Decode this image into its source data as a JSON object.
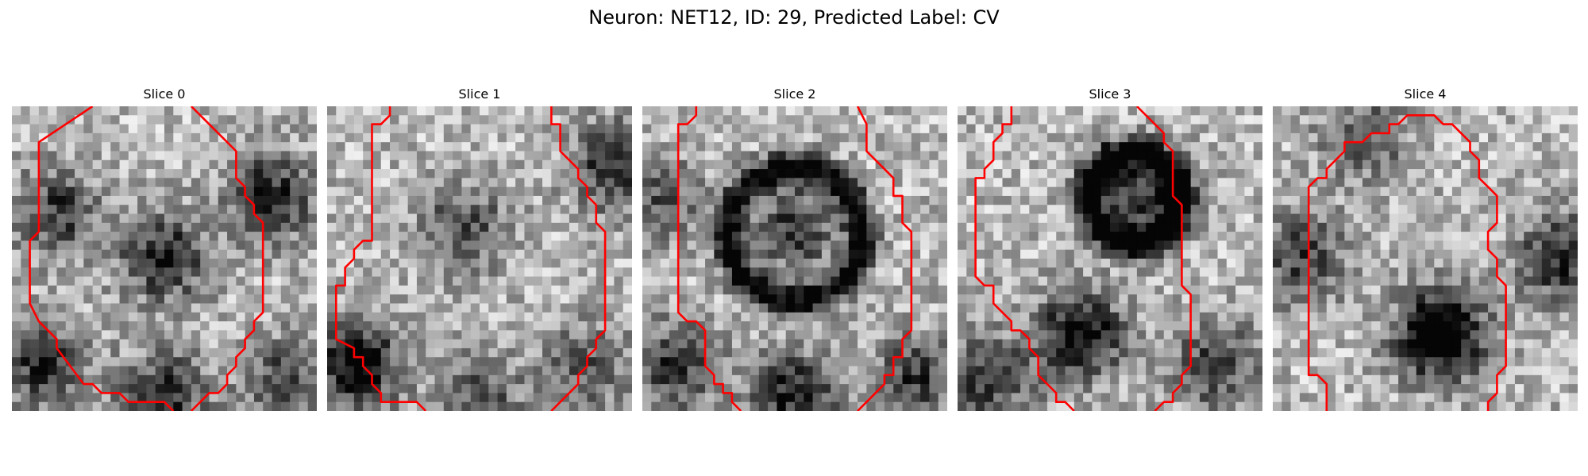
{
  "figure": {
    "title": "Neuron: NET12, ID: 29, Predicted Label: CV"
  },
  "panels": [
    {
      "title": "Slice 0",
      "contour": [
        [
          9,
          0
        ],
        [
          3,
          4
        ],
        [
          3,
          14
        ],
        [
          2,
          15
        ],
        [
          2,
          22
        ],
        [
          3,
          24
        ],
        [
          5,
          26
        ],
        [
          5,
          27
        ],
        [
          8,
          31
        ],
        [
          9,
          31
        ],
        [
          10,
          32
        ],
        [
          12,
          32
        ],
        [
          13,
          33
        ],
        [
          17,
          33
        ],
        [
          18,
          34
        ]
      ],
      "contour2": [
        [
          20,
          0
        ],
        [
          24,
          4
        ],
        [
          25,
          5
        ],
        [
          25,
          8
        ],
        [
          26,
          9
        ],
        [
          26,
          10
        ],
        [
          27,
          11
        ],
        [
          27,
          12
        ],
        [
          28,
          13
        ],
        [
          28,
          23
        ],
        [
          27,
          24
        ],
        [
          27,
          25
        ],
        [
          26,
          26
        ],
        [
          26,
          27
        ],
        [
          25,
          28
        ],
        [
          25,
          29
        ],
        [
          24,
          30
        ],
        [
          24,
          31
        ],
        [
          23,
          32
        ],
        [
          22,
          32
        ],
        [
          21,
          33
        ],
        [
          20,
          34
        ]
      ],
      "dark": [
        [
          0.5,
          0.5,
          0.6
        ],
        [
          0.15,
          0.35,
          0.5
        ],
        [
          0.85,
          0.3,
          0.6
        ],
        [
          0.5,
          0.95,
          0.55
        ],
        [
          0.9,
          0.9,
          0.45
        ],
        [
          0.1,
          0.85,
          0.55
        ]
      ]
    },
    {
      "title": "Slice 1",
      "contour": [
        [
          7,
          0
        ],
        [
          7,
          1
        ],
        [
          6,
          2
        ],
        [
          5,
          2
        ],
        [
          5,
          15
        ],
        [
          4,
          15
        ],
        [
          3,
          16
        ],
        [
          3,
          17
        ],
        [
          2,
          18
        ],
        [
          2,
          20
        ],
        [
          1,
          20
        ],
        [
          1,
          26
        ],
        [
          3,
          27
        ],
        [
          3,
          28
        ],
        [
          4,
          28
        ],
        [
          4,
          29
        ],
        [
          5,
          30
        ],
        [
          5,
          31
        ],
        [
          6,
          32
        ],
        [
          6,
          33
        ],
        [
          10,
          33
        ],
        [
          11,
          34
        ]
      ],
      "contour2": [
        [
          25,
          0
        ],
        [
          25,
          2
        ],
        [
          26,
          2
        ],
        [
          26,
          5
        ],
        [
          27,
          6
        ],
        [
          28,
          7
        ],
        [
          28,
          8
        ],
        [
          29,
          9
        ],
        [
          29,
          10
        ],
        [
          30,
          11
        ],
        [
          30,
          13
        ],
        [
          31,
          14
        ],
        [
          31,
          21
        ],
        [
          31,
          25
        ],
        [
          30,
          26
        ],
        [
          30,
          27
        ],
        [
          29,
          28
        ],
        [
          29,
          29
        ],
        [
          28,
          30
        ],
        [
          28,
          31
        ],
        [
          27,
          32
        ],
        [
          26,
          33
        ],
        [
          25,
          34
        ]
      ],
      "dark": [
        [
          0.45,
          0.4,
          0.45
        ],
        [
          0.1,
          0.85,
          0.75
        ],
        [
          0.95,
          0.2,
          0.6
        ],
        [
          0.5,
          0.95,
          0.4
        ],
        [
          0.85,
          0.85,
          0.4
        ]
      ]
    },
    {
      "title": "Slice 2",
      "contour": [
        [
          6,
          0
        ],
        [
          6,
          1
        ],
        [
          5,
          2
        ],
        [
          4,
          2
        ],
        [
          4,
          23
        ],
        [
          5,
          24
        ],
        [
          6,
          24
        ],
        [
          7,
          25
        ],
        [
          7,
          29
        ],
        [
          8,
          30
        ],
        [
          8,
          31
        ],
        [
          9,
          31
        ],
        [
          9,
          32
        ],
        [
          10,
          32
        ],
        [
          10,
          33
        ],
        [
          11,
          34
        ]
      ],
      "contour2": [
        [
          24,
          0
        ],
        [
          25,
          2
        ],
        [
          25,
          5
        ],
        [
          27,
          7
        ],
        [
          28,
          8
        ],
        [
          28,
          10
        ],
        [
          29,
          10
        ],
        [
          29,
          13
        ],
        [
          30,
          14
        ],
        [
          30,
          25
        ],
        [
          29,
          26
        ],
        [
          29,
          28
        ],
        [
          28,
          28
        ],
        [
          28,
          30
        ],
        [
          27,
          30
        ],
        [
          27,
          31
        ],
        [
          26,
          32
        ],
        [
          25,
          33
        ],
        [
          24,
          34
        ]
      ],
      "dark": [
        [
          0.5,
          0.4,
          0.5
        ],
        [
          0.5,
          0.95,
          0.6
        ],
        [
          0.1,
          0.85,
          0.55
        ],
        [
          0.9,
          0.9,
          0.5
        ],
        [
          0.05,
          0.3,
          0.4
        ]
      ],
      "ring": [
        0.5,
        0.42,
        0.22,
        0.75
      ]
    },
    {
      "title": "Slice 3",
      "contour": [
        [
          6,
          0
        ],
        [
          6,
          2
        ],
        [
          5,
          2
        ],
        [
          5,
          3
        ],
        [
          4,
          4
        ],
        [
          4,
          6
        ],
        [
          3,
          7
        ],
        [
          3,
          8
        ],
        [
          2,
          8
        ],
        [
          2,
          19
        ],
        [
          3,
          20
        ],
        [
          4,
          20
        ],
        [
          4,
          22
        ],
        [
          5,
          23
        ],
        [
          6,
          24
        ],
        [
          6,
          25
        ],
        [
          7,
          25
        ],
        [
          8,
          26
        ],
        [
          8,
          27
        ],
        [
          9,
          28
        ],
        [
          9,
          30
        ],
        [
          10,
          31
        ],
        [
          11,
          32
        ],
        [
          11,
          33
        ],
        [
          12,
          33
        ],
        [
          13,
          34
        ]
      ],
      "contour2": [
        [
          20,
          0
        ],
        [
          22,
          2
        ],
        [
          23,
          3
        ],
        [
          23,
          4
        ],
        [
          24,
          5
        ],
        [
          24,
          10
        ],
        [
          25,
          11
        ],
        [
          25,
          20
        ],
        [
          26,
          21
        ],
        [
          26,
          29
        ],
        [
          25,
          30
        ],
        [
          25,
          31
        ],
        [
          24,
          32
        ],
        [
          24,
          33
        ],
        [
          23,
          33
        ],
        [
          22,
          34
        ]
      ],
      "dark": [
        [
          0.6,
          0.3,
          0.55
        ],
        [
          0.4,
          0.75,
          0.75
        ],
        [
          0.1,
          0.9,
          0.5
        ],
        [
          0.85,
          0.85,
          0.5
        ]
      ],
      "ring": [
        0.58,
        0.3,
        0.15,
        0.8
      ]
    },
    {
      "title": "Slice 4",
      "contour": [
        [
          6,
          34
        ],
        [
          6,
          31
        ],
        [
          5,
          30
        ],
        [
          4,
          30
        ],
        [
          4,
          9
        ],
        [
          5,
          8
        ],
        [
          6,
          8
        ],
        [
          6,
          7
        ],
        [
          7,
          6
        ],
        [
          8,
          5
        ],
        [
          8,
          4
        ],
        [
          10,
          4
        ],
        [
          11,
          3
        ],
        [
          13,
          3
        ],
        [
          13,
          2
        ],
        [
          14,
          2
        ],
        [
          15,
          1
        ],
        [
          18,
          1
        ],
        [
          19,
          2
        ],
        [
          20,
          2
        ],
        [
          21,
          3
        ],
        [
          22,
          4
        ],
        [
          22,
          5
        ],
        [
          23,
          6
        ],
        [
          23,
          8
        ],
        [
          24,
          9
        ],
        [
          25,
          10
        ],
        [
          25,
          13
        ],
        [
          24,
          14
        ],
        [
          24,
          16
        ],
        [
          25,
          17
        ],
        [
          25,
          19
        ],
        [
          26,
          20
        ],
        [
          26,
          29
        ],
        [
          25,
          30
        ],
        [
          25,
          32
        ],
        [
          24,
          33
        ],
        [
          24,
          34
        ]
      ],
      "dark": [
        [
          0.55,
          0.75,
          0.95
        ],
        [
          0.1,
          0.5,
          0.5
        ],
        [
          0.95,
          0.5,
          0.6
        ],
        [
          0.3,
          0.1,
          0.4
        ]
      ]
    }
  ]
}
